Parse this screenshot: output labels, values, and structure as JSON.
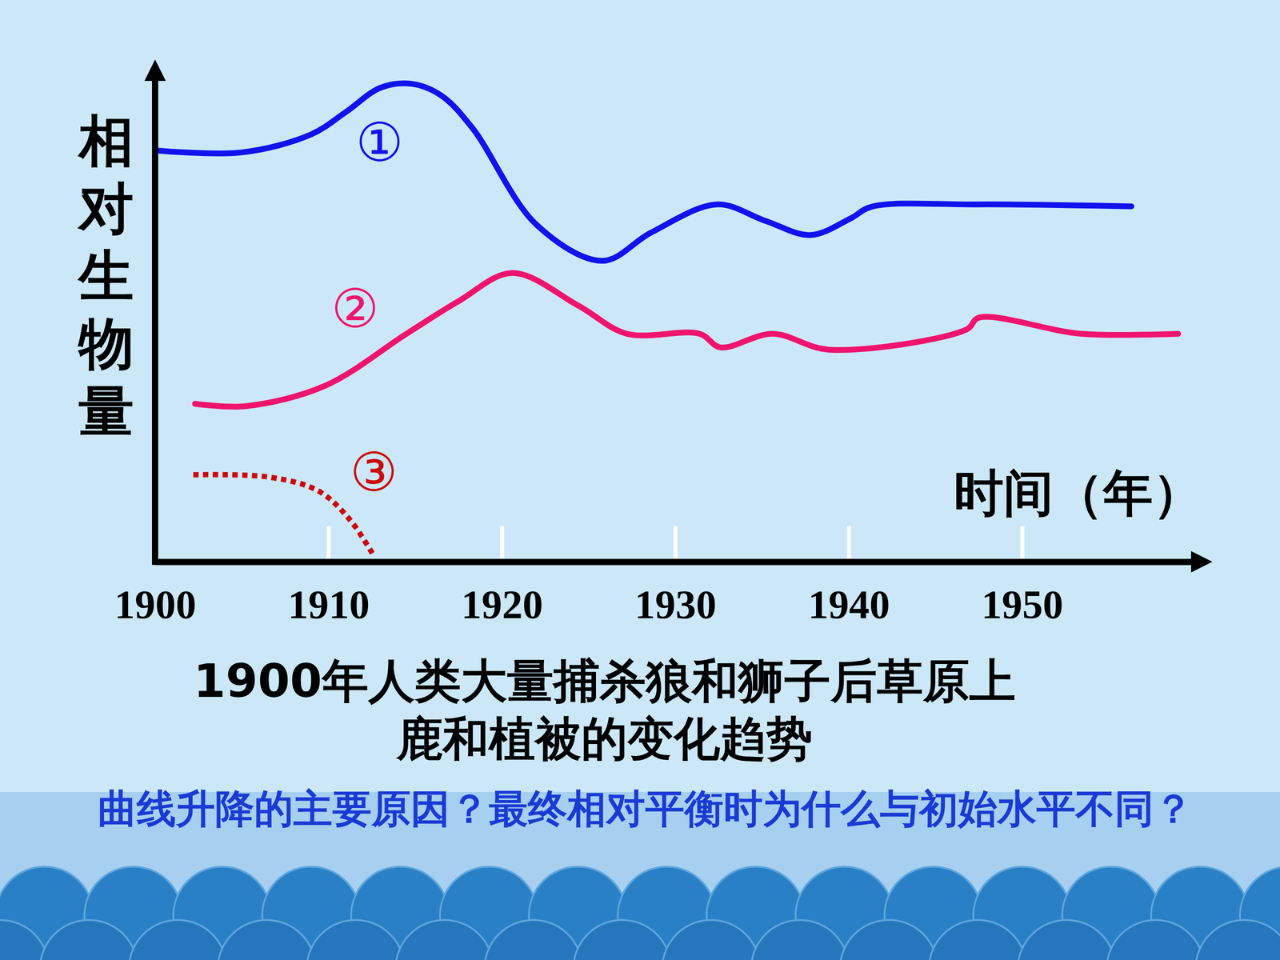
{
  "chart_data": {
    "type": "line",
    "title": [
      "1900年人类大量捕杀狼和狮子后草原上",
      "鹿和植被的变化趋势"
    ],
    "annotations": [
      "曲线升降的主要原因？最终相对平衡时为什么与初始水平不同？"
    ],
    "xlabel": "时间（年）",
    "ylabel": "相对生物量",
    "xlim": [
      1900,
      1960
    ],
    "xticks": [
      1900,
      1910,
      1920,
      1930,
      1940,
      1950
    ],
    "ylim": [
      0,
      100
    ],
    "tick_labels": "x",
    "grid": false,
    "series": [
      {
        "name": "①",
        "color": "#1212ee",
        "line_style": "solid",
        "x": [
          1900,
          1905,
          1909,
          1911,
          1913,
          1914.8,
          1916.5,
          1918.3,
          1922,
          1925.8,
          1928.6,
          1932.4,
          1935.2,
          1937.8,
          1940.1,
          1941.3,
          1947.4,
          1956.3
        ],
        "values": [
          84.6,
          84.2,
          87.9,
          92.5,
          97.5,
          98.3,
          95.9,
          89.2,
          69.3,
          61.9,
          67.7,
          73.5,
          70.1,
          67.2,
          70.6,
          73.0,
          73.5,
          73.1
        ]
      },
      {
        "name": "②",
        "color": "#f0146e",
        "line_style": "solid",
        "x": [
          1902.3,
          1905.2,
          1909.8,
          1914.5,
          1917.5,
          1920.6,
          1924.4,
          1927.2,
          1931.4,
          1932.6,
          1935.6,
          1938.9,
          1946.8,
          1947.5,
          1953.4,
          1959
        ],
        "values": [
          32.5,
          32.0,
          36.2,
          46.9,
          53.6,
          59.4,
          52.7,
          46.9,
          46.9,
          44.1,
          46.9,
          43.6,
          47.8,
          50.2,
          46.9,
          46.9
        ]
      },
      {
        "name": "③",
        "color": "#cc0a0a",
        "line_style": "dotted",
        "x": [
          1902.2,
          1906.6,
          1909.4,
          1911.2,
          1912.6
        ],
        "values": [
          17.9,
          17.4,
          14.6,
          8.8,
          1.3
        ]
      }
    ]
  }
}
